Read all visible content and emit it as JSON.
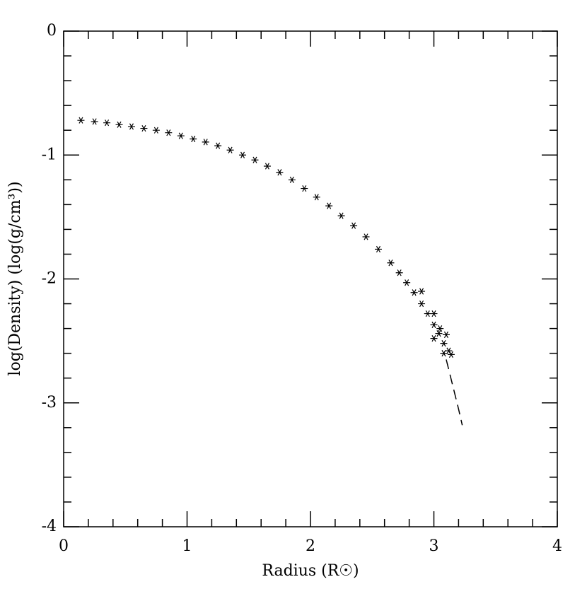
{
  "chart_data": {
    "type": "scatter",
    "xlabel": "Radius (R☉)",
    "ylabel": "log(Density) (log(g/cm³))",
    "xlim": [
      0,
      4
    ],
    "ylim": [
      -4,
      0
    ],
    "xticks": [
      0,
      1,
      2,
      3,
      4
    ],
    "yticks": [
      -4,
      -3,
      -2,
      -1,
      0
    ],
    "xminorticks": [
      0.2,
      0.4,
      0.6,
      0.8,
      1.2,
      1.4,
      1.6,
      1.8,
      2.2,
      2.4,
      2.6,
      2.8,
      3.2,
      3.4,
      3.6,
      3.8
    ],
    "yminorticks": [
      -3.8,
      -3.6,
      -3.4,
      -3.2,
      -2.8,
      -2.6,
      -2.4,
      -2.2,
      -1.8,
      -1.6,
      -1.4,
      -1.2,
      -0.8,
      -0.6,
      -0.4,
      -0.2
    ],
    "color": "#000000",
    "x": [
      0.14,
      0.25,
      0.35,
      0.45,
      0.55,
      0.65,
      0.75,
      0.85,
      0.95,
      1.05,
      1.15,
      1.25,
      1.35,
      1.45,
      1.55,
      1.65,
      1.75,
      1.85,
      1.95,
      2.05,
      2.15,
      2.25,
      2.35,
      2.45,
      2.55,
      2.65,
      2.72,
      2.78,
      2.84,
      2.9,
      2.95,
      3.0,
      3.04,
      3.08,
      3.12,
      3.14,
      2.9,
      3.0,
      3.05,
      3.1,
      3.0,
      3.08
    ],
    "y": [
      -0.72,
      -0.73,
      -0.74,
      -0.755,
      -0.77,
      -0.785,
      -0.8,
      -0.82,
      -0.845,
      -0.87,
      -0.895,
      -0.925,
      -0.96,
      -1.0,
      -1.04,
      -1.09,
      -1.14,
      -1.2,
      -1.27,
      -1.34,
      -1.41,
      -1.49,
      -1.57,
      -1.66,
      -1.76,
      -1.87,
      -1.95,
      -2.03,
      -2.11,
      -2.2,
      -2.28,
      -2.37,
      -2.44,
      -2.52,
      -2.58,
      -2.61,
      -2.1,
      -2.28,
      -2.4,
      -2.45,
      -2.48,
      -2.6
    ],
    "line": {
      "style": "dashed",
      "x": [
        3.1,
        3.15,
        3.2,
        3.23
      ],
      "y": [
        -2.65,
        -2.85,
        -3.05,
        -3.18
      ]
    }
  }
}
